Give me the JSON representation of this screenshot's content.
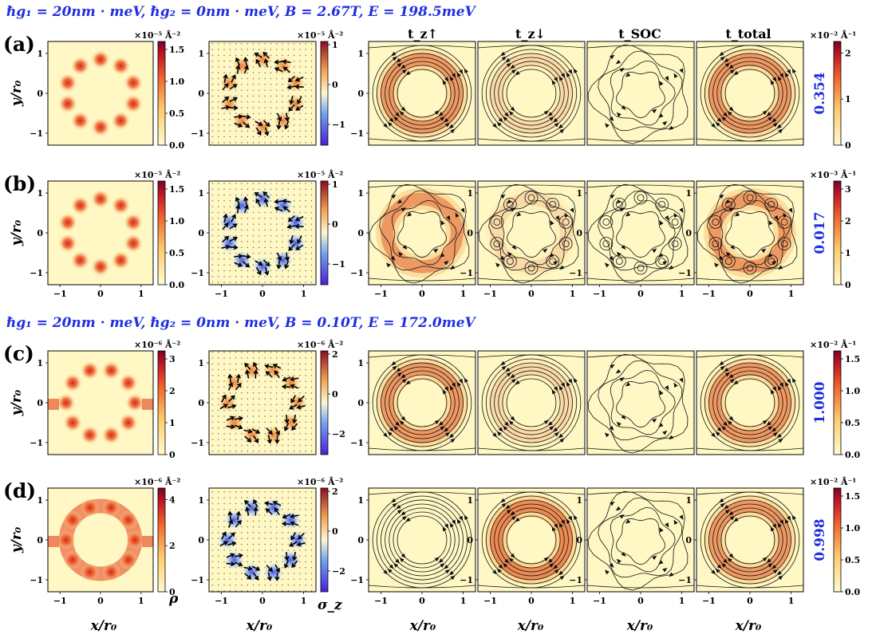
{
  "figure": {
    "header_top": "ℏg₁ = 20nm · meV, ℏg₂ = 0nm · meV, B = 2.67T, E = 198.5meV",
    "header_mid": "ℏg₁ = 20nm · meV, ℏg₂ = 0nm · meV, B = 0.10T, E = 172.0meV",
    "column_titles": [
      "t_z↑",
      "t_z↓",
      "t_SOC",
      "t_total"
    ],
    "xlabel": "x/r₀",
    "ylabel": "y/r₀",
    "density_label": "ρ",
    "spin_label": "σ_z",
    "rows": [
      {
        "label": "(a)",
        "density_scale": "×10⁻⁵ Å⁻²",
        "spin_scale": "×10⁻⁵ Å⁻²",
        "current_scale": "×10⁻² Å⁻¹",
        "transmission": "0.354",
        "density_ticks": [
          "0.0",
          "0.5",
          "1.0",
          "1.5"
        ],
        "spin_ticks": [
          "−1",
          "0",
          "1"
        ],
        "current_ticks": [
          "0",
          "1",
          "2"
        ]
      },
      {
        "label": "(b)",
        "density_scale": "×10⁻⁵ Å⁻²",
        "spin_scale": "×10⁻⁵ Å⁻²",
        "current_scale": "×10⁻³ Å⁻¹",
        "transmission": "0.017",
        "density_ticks": [
          "0.0",
          "0.5",
          "1.0",
          "1.5"
        ],
        "spin_ticks": [
          "−1",
          "0",
          "1"
        ],
        "current_ticks": [
          "0",
          "1",
          "2",
          "3"
        ]
      },
      {
        "label": "(c)",
        "density_scale": "×10⁻⁶ Å⁻²",
        "spin_scale": "×10⁻⁶ Å⁻²",
        "current_scale": "×10⁻² Å⁻¹",
        "transmission": "1.000",
        "density_ticks": [
          "0",
          "1",
          "2",
          "3"
        ],
        "spin_ticks": [
          "−2",
          "0",
          "2"
        ],
        "current_ticks": [
          "0.0",
          "0.5",
          "1.0",
          "1.5"
        ]
      },
      {
        "label": "(d)",
        "density_scale": "×10⁻⁶ Å⁻²",
        "spin_scale": "×10⁻⁶ Å⁻²",
        "current_scale": "×10⁻² Å⁻¹",
        "transmission": "0.998",
        "density_ticks": [
          "0",
          "2",
          "4"
        ],
        "spin_ticks": [
          "−2",
          "0",
          "2"
        ],
        "current_ticks": [
          "0.0",
          "0.5",
          "1.0",
          "1.5"
        ]
      }
    ]
  },
  "chart_data": {
    "type": "heatmap",
    "x_ticks": [
      "−1",
      "0",
      "1"
    ],
    "y_ticks": [
      "−1",
      "0",
      "1"
    ],
    "x_range": [
      -1.3,
      1.3
    ],
    "y_range": [
      -1.3,
      1.3
    ],
    "rows": [
      {
        "label": "(a)",
        "density": {
          "max": 1.6,
          "unit": "×10⁻⁵ Å⁻²"
        },
        "spin": {
          "min": -1.2,
          "max": 1.2
        },
        "current": {
          "max": 2.2
        },
        "transmission": 0.354
      },
      {
        "label": "(b)",
        "density": {
          "max": 1.6,
          "unit": "×10⁻⁵ Å⁻²"
        },
        "spin": {
          "min": -1.2,
          "max": 1.2
        },
        "current": {
          "max": 3.4
        },
        "transmission": 0.017
      },
      {
        "label": "(c)",
        "density": {
          "max": 3.8,
          "unit": "×10⁻⁶ Å⁻²"
        },
        "spin": {
          "min": -3.3,
          "max": 3.3
        },
        "current": {
          "max": 1.8
        },
        "transmission": 1.0
      },
      {
        "label": "(d)",
        "density": {
          "max": 4.2,
          "unit": "×10⁻⁶ Å⁻²"
        },
        "spin": {
          "min": -3.3,
          "max": 3.3
        },
        "current": {
          "max": 1.85
        },
        "transmission": 0.998
      }
    ],
    "colormaps": {
      "density": "YlOrRd",
      "spin": "coolwarm",
      "current": "YlOrRd"
    }
  }
}
